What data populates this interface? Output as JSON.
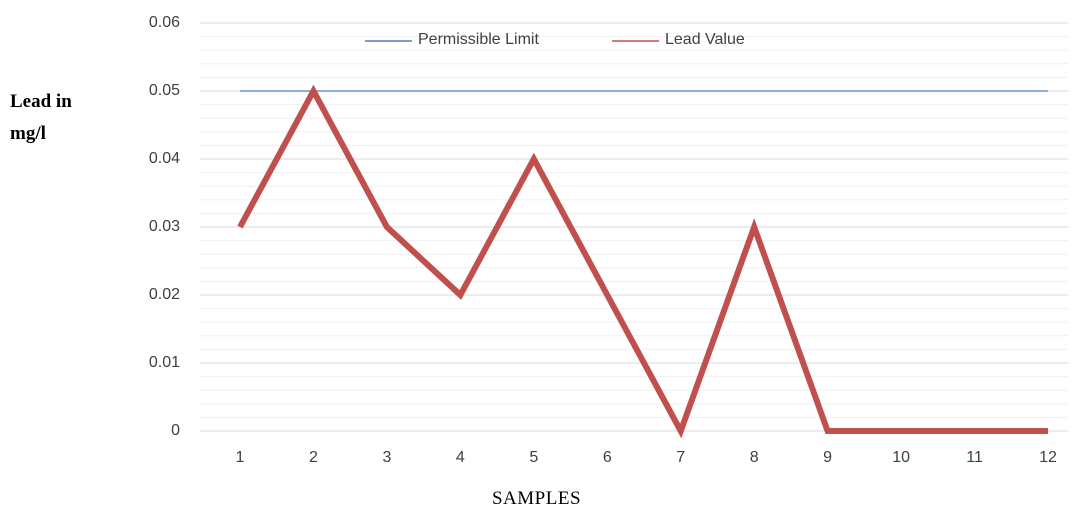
{
  "chart_data": {
    "type": "line",
    "y_label": "Lead in mg/l",
    "x_label": "SAMPLES",
    "categories": [
      1,
      2,
      3,
      4,
      5,
      6,
      7,
      8,
      9,
      10,
      11,
      12
    ],
    "series": [
      {
        "name": "Permissible Limit",
        "color": "#4a7ebb",
        "values": [
          0.05,
          0.05,
          0.05,
          0.05,
          0.05,
          0.05,
          0.05,
          0.05,
          0.05,
          0.05,
          0.05,
          0.05
        ]
      },
      {
        "name": "Lead Value",
        "color": "#c0504d",
        "values": [
          0.03,
          0.05,
          0.03,
          0.02,
          0.04,
          0.02,
          0,
          0.03,
          0,
          0,
          0,
          0
        ]
      }
    ],
    "ylim": [
      0,
      0.06
    ],
    "yticks": [
      0,
      0.01,
      0.02,
      0.03,
      0.04,
      0.05,
      0.06
    ],
    "grid": true,
    "legend": "top"
  }
}
